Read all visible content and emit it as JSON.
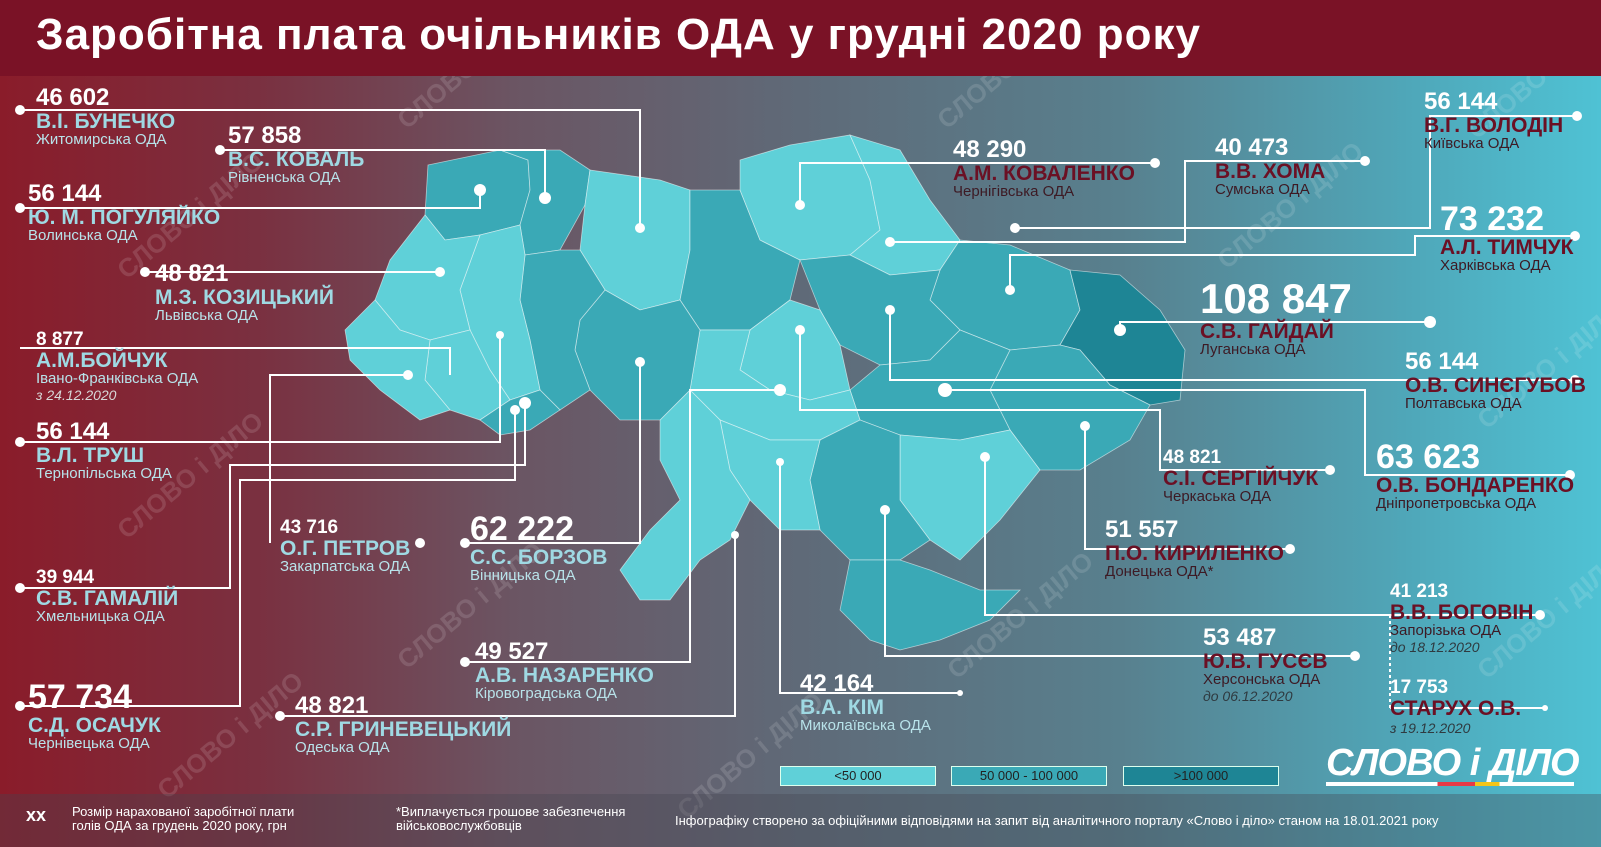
{
  "title": "Заробітна плата очільників ОДА у грудні 2020 року",
  "officials": {
    "zhytomyr": {
      "value": "46 602",
      "name": "В.І. БУНЕЧКО",
      "oda": "Житомирська ОДА"
    },
    "rivne": {
      "value": "57 858",
      "name": "В.С. КОВАЛЬ",
      "oda": "Рівненська ОДА"
    },
    "volyn": {
      "value": "56 144",
      "name": "Ю. М. ПОГУЛЯЙКО",
      "oda": "Волинська ОДА"
    },
    "lviv": {
      "value": "48 821",
      "name": "М.З. КОЗИЦЬКИЙ",
      "oda": "Львівська ОДА"
    },
    "ivano": {
      "value": "8 877",
      "name": "А.М.БОЙЧУК",
      "oda": "Івано-Франківська ОДА",
      "date": "з 24.12.2020"
    },
    "ternopil": {
      "value": "56 144",
      "name": "В.Л. ТРУШ",
      "oda": "Тернопільська ОДА"
    },
    "zakarpattia": {
      "value": "43 716",
      "name": "О.Г. ПЕТРОВ",
      "oda": "Закарпатська ОДА"
    },
    "khmelnytskyi": {
      "value": "39 944",
      "name": "С.В. ГАМАЛІЙ",
      "oda": "Хмельницька ОДА"
    },
    "vinnytsia": {
      "value": "62 222",
      "name": "С.С. БОРЗОВ",
      "oda": "Вінницька ОДА"
    },
    "chernivtsi": {
      "value": "57 734",
      "name": "С.Д. ОСАЧУК",
      "oda": "Чернівецька ОДА"
    },
    "kirovohrad": {
      "value": "49 527",
      "name": "А.В. НАЗАРЕНКО",
      "oda": "Кіровоградська ОДА"
    },
    "odesa": {
      "value": "48 821",
      "name": "С.Р. ГРИНЕВЕЦЬКИЙ",
      "oda": "Одеська ОДА"
    },
    "mykolaiv": {
      "value": "42 164",
      "name": "В.А. КІМ",
      "oda": "Миколаївська ОДА"
    },
    "chernihiv": {
      "value": "48 290",
      "name": "А.М. КОВАЛЕНКО",
      "oda": "Чернігівська ОДА"
    },
    "sumy": {
      "value": "40 473",
      "name": "В.В. ХОМА",
      "oda": "Сумська ОДА"
    },
    "kyiv": {
      "value": "56 144",
      "name": "В.Г. ВОЛОДІН",
      "oda": "Київська ОДА"
    },
    "kharkiv": {
      "value": "73 232",
      "name": "А.Л. ТИМЧУК",
      "oda": "Харківська ОДА"
    },
    "luhansk": {
      "value": "108 847",
      "name": "С.В. ГАЙДАЙ",
      "oda": "Луганська ОДА"
    },
    "poltava": {
      "value": "56 144",
      "name": "О.В. СИНЄГУБОВ",
      "oda": "Полтавська ОДА"
    },
    "cherkasy": {
      "value": "48 821",
      "name": "С.І. СЕРГІЙЧУК",
      "oda": "Черкаська ОДА"
    },
    "dnipro": {
      "value": "63 623",
      "name": "О.В. БОНДАРЕНКО",
      "oda": "Дніпропетровська ОДА"
    },
    "donetsk": {
      "value": "51 557",
      "name": "П.О. КИРИЛЕНКО",
      "oda": "Донецька ОДА*"
    },
    "zaporizhzhia1": {
      "value": "41 213",
      "name": "В.В. БОГОВІН",
      "oda": "Запорізька ОДА",
      "date": "до 18.12.2020"
    },
    "zaporizhzhia2": {
      "value": "17 753",
      "name": "СТАРУХ О.В.",
      "date": "з 19.12.2020"
    },
    "kherson": {
      "value": "53 487",
      "name": "Ю.В. ГУСЄВ",
      "oda": "Херсонська ОДА",
      "date": "до 06.12.2020"
    }
  },
  "legend": {
    "low": "<50 000",
    "mid": "50 000 - 100 000",
    "high": ">100 000",
    "colors": {
      "low": "#5fd0d8",
      "mid": "#3aa9b6",
      "high": "#1e8595"
    }
  },
  "footer": {
    "xx": "xx",
    "note": "Розмір нарахованої заробітної плати голів ОДА за грудень 2020 року, грн",
    "asterisk": "*Виплачується грошове забезпечення військовослужбовців",
    "source": "Інфографіку створено за офіційними відповідями на запит від аналітичного  порталу «Слово і діло» станом на 18.01.2021 року"
  },
  "logo": "СЛОВО і ДІЛО",
  "watermark": "СЛОВО і ДІЛО"
}
